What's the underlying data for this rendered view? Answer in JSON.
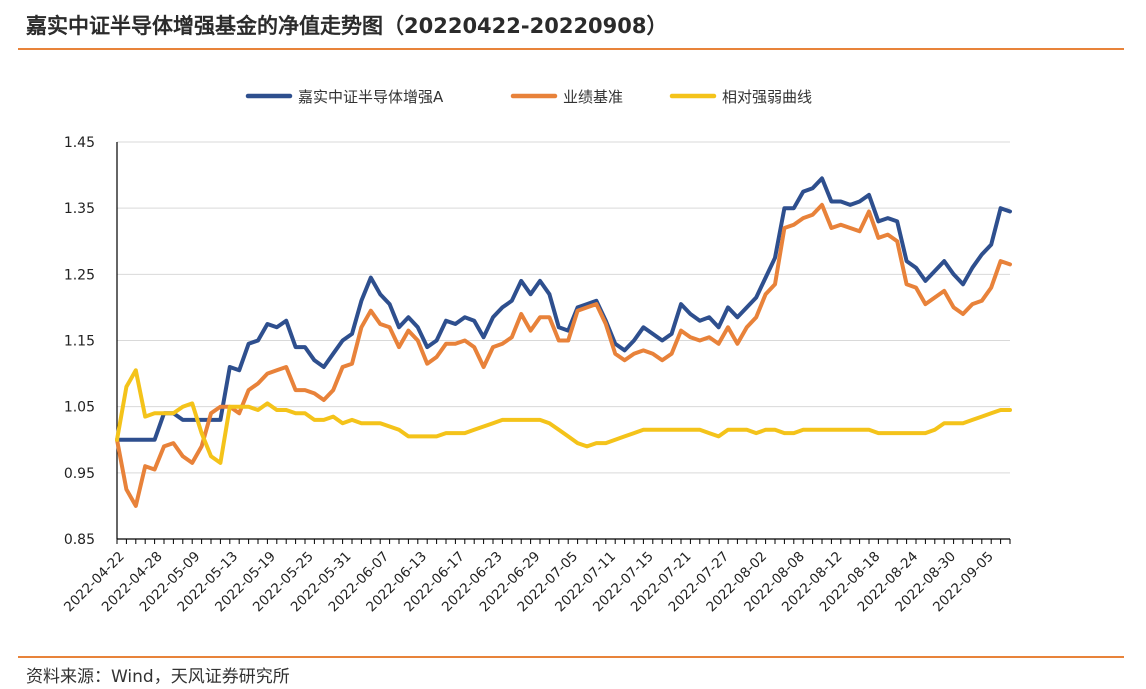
{
  "header": {
    "title": "嘉实中证半导体增强基金的净值走势图（20220422-20220908）"
  },
  "footer": {
    "source": "资料来源：Wind，天风证券研究所"
  },
  "colors": {
    "accent_rule": "#e8833a",
    "fund": "#2e4f8e",
    "benchmark": "#e8823a",
    "relative": "#f4c31a",
    "grid": "#d9d9d9"
  },
  "chart_data": {
    "type": "line",
    "title": "嘉实中证半导体增强基金的净值走势图（20220422-20220908）",
    "xlabel": "",
    "ylabel": "",
    "ylim": [
      0.85,
      1.45
    ],
    "yticks": [
      "1.45",
      "1.35",
      "1.25",
      "1.15",
      "1.05",
      "0.95",
      "0.85"
    ],
    "xtick_labels": [
      "2022-04-22",
      "2022-04-28",
      "2022-05-09",
      "2022-05-13",
      "2022-05-19",
      "2022-05-25",
      "2022-05-31",
      "2022-06-07",
      "2022-06-13",
      "2022-06-17",
      "2022-06-23",
      "2022-06-29",
      "2022-07-05",
      "2022-07-11",
      "2022-07-15",
      "2022-07-21",
      "2022-07-27",
      "2022-08-02",
      "2022-08-08",
      "2022-08-12",
      "2022-08-18",
      "2022-08-24",
      "2022-08-30",
      "2022-09-05"
    ],
    "grid": true,
    "legend_position": "top",
    "series": [
      {
        "name": "嘉实中证半导体增强A",
        "color": "#2e4f8e",
        "values": [
          1.0,
          1.0,
          1.0,
          1.0,
          1.0,
          1.04,
          1.04,
          1.03,
          1.03,
          1.03,
          1.03,
          1.03,
          1.11,
          1.105,
          1.145,
          1.15,
          1.175,
          1.17,
          1.18,
          1.14,
          1.14,
          1.12,
          1.11,
          1.13,
          1.15,
          1.16,
          1.21,
          1.245,
          1.22,
          1.205,
          1.17,
          1.185,
          1.17,
          1.14,
          1.15,
          1.18,
          1.175,
          1.185,
          1.18,
          1.155,
          1.185,
          1.2,
          1.21,
          1.24,
          1.22,
          1.24,
          1.22,
          1.17,
          1.165,
          1.2,
          1.205,
          1.21,
          1.18,
          1.145,
          1.135,
          1.15,
          1.17,
          1.16,
          1.15,
          1.16,
          1.205,
          1.19,
          1.18,
          1.185,
          1.17,
          1.2,
          1.185,
          1.2,
          1.215,
          1.245,
          1.275,
          1.35,
          1.35,
          1.375,
          1.38,
          1.395,
          1.36,
          1.36,
          1.355,
          1.36,
          1.37,
          1.33,
          1.335,
          1.33,
          1.27,
          1.26,
          1.24,
          1.255,
          1.27,
          1.25,
          1.235,
          1.26,
          1.28,
          1.295,
          1.35,
          1.345
        ]
      },
      {
        "name": "业绩基准",
        "color": "#e8823a",
        "values": [
          1.0,
          0.925,
          0.9,
          0.96,
          0.955,
          0.99,
          0.995,
          0.975,
          0.965,
          0.99,
          1.04,
          1.05,
          1.05,
          1.04,
          1.075,
          1.085,
          1.1,
          1.105,
          1.11,
          1.075,
          1.075,
          1.07,
          1.06,
          1.075,
          1.11,
          1.115,
          1.17,
          1.195,
          1.175,
          1.17,
          1.14,
          1.165,
          1.15,
          1.115,
          1.125,
          1.145,
          1.145,
          1.15,
          1.14,
          1.11,
          1.14,
          1.145,
          1.155,
          1.19,
          1.165,
          1.185,
          1.185,
          1.15,
          1.15,
          1.195,
          1.2,
          1.205,
          1.175,
          1.13,
          1.12,
          1.13,
          1.135,
          1.13,
          1.12,
          1.13,
          1.165,
          1.155,
          1.15,
          1.155,
          1.145,
          1.17,
          1.145,
          1.17,
          1.185,
          1.22,
          1.235,
          1.32,
          1.325,
          1.335,
          1.34,
          1.355,
          1.32,
          1.325,
          1.32,
          1.315,
          1.345,
          1.305,
          1.31,
          1.3,
          1.235,
          1.23,
          1.205,
          1.215,
          1.225,
          1.2,
          1.19,
          1.205,
          1.21,
          1.23,
          1.27,
          1.265
        ]
      },
      {
        "name": "相对强弱曲线",
        "color": "#f4c31a",
        "values": [
          1.0,
          1.08,
          1.105,
          1.035,
          1.04,
          1.04,
          1.04,
          1.05,
          1.055,
          1.01,
          0.975,
          0.965,
          1.05,
          1.05,
          1.05,
          1.045,
          1.055,
          1.045,
          1.045,
          1.04,
          1.04,
          1.03,
          1.03,
          1.035,
          1.025,
          1.03,
          1.025,
          1.025,
          1.025,
          1.02,
          1.015,
          1.005,
          1.005,
          1.005,
          1.005,
          1.01,
          1.01,
          1.01,
          1.015,
          1.02,
          1.025,
          1.03,
          1.03,
          1.03,
          1.03,
          1.03,
          1.025,
          1.015,
          1.005,
          0.995,
          0.99,
          0.995,
          0.995,
          1.0,
          1.005,
          1.01,
          1.015,
          1.015,
          1.015,
          1.015,
          1.015,
          1.015,
          1.015,
          1.01,
          1.005,
          1.015,
          1.015,
          1.015,
          1.01,
          1.015,
          1.015,
          1.01,
          1.01,
          1.015,
          1.015,
          1.015,
          1.015,
          1.015,
          1.015,
          1.015,
          1.015,
          1.01,
          1.01,
          1.01,
          1.01,
          1.01,
          1.01,
          1.015,
          1.025,
          1.025,
          1.025,
          1.03,
          1.035,
          1.04,
          1.045,
          1.045
        ]
      }
    ]
  }
}
